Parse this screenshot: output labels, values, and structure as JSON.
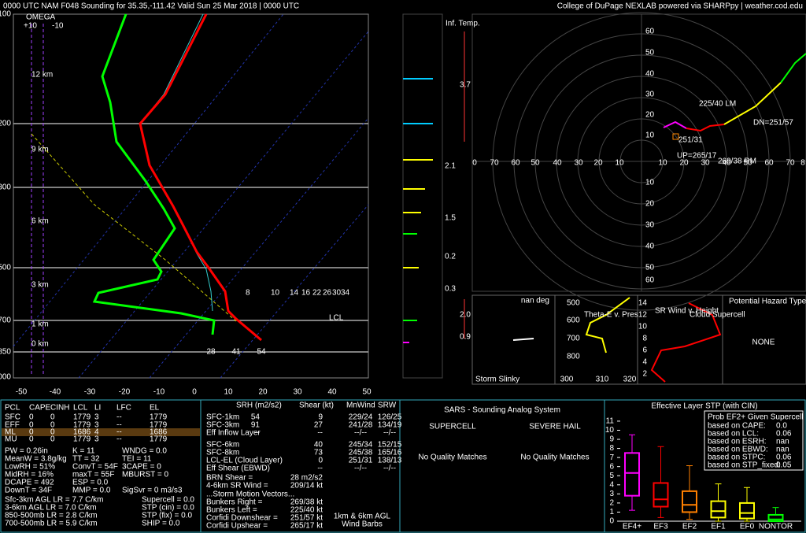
{
  "header": {
    "title": "0000 UTC NAM F048 Sounding for 35.35,-111.42 Valid  Sun 25 Mar 2018 | 0000 UTC",
    "credit": "College of DuPage NEXLAB powered via SHARPpy | weather.cod.edu"
  },
  "skewt": {
    "omega_title": "OMEGA",
    "omega_ticks": [
      "+10",
      "-10"
    ],
    "pressure_labels": [
      "100",
      "200",
      "300",
      "500",
      "700",
      "850",
      "1000"
    ],
    "temp_labels": [
      "-50",
      "-40",
      "-30",
      "-20",
      "-10",
      "0",
      "10",
      "20",
      "30",
      "40",
      "50"
    ],
    "height_labels": [
      "12 km",
      "9 km",
      "6 km",
      "3 km",
      "1 km",
      "0 km"
    ],
    "mixing_labels": [
      "8",
      "10",
      "14",
      "16",
      "22",
      "26",
      "30",
      "34"
    ],
    "lcl": "LCL",
    "surface_labels": [
      "28",
      "41",
      "54"
    ]
  },
  "inferred_temp": {
    "title": "Inf. Temp.",
    "labels": [
      "3.7",
      "2.1",
      "1.5",
      "0.2",
      "0.3",
      "2.0",
      "0.9"
    ]
  },
  "hodograph": {
    "x_labels": [
      "0",
      "70",
      "60",
      "50",
      "40",
      "30",
      "20",
      "10",
      "10",
      "20",
      "30",
      "40",
      "50",
      "60",
      "70",
      "8"
    ],
    "y_labels": [
      "60",
      "50",
      "40",
      "30",
      "20",
      "10",
      "10",
      "20",
      "30",
      "40",
      "50",
      "60"
    ],
    "annotations": [
      "225/40 LM",
      "DN=251/57",
      "251/31",
      "UP=265/17",
      "269/38 RM"
    ]
  },
  "slinky": {
    "angle": "nan deg",
    "title": "Storm Slinky"
  },
  "theta_e": {
    "title": "Theta-E v. Pres",
    "p_labels": [
      "500",
      "600",
      "700",
      "800"
    ],
    "t_labels": [
      "300",
      "310",
      "320"
    ]
  },
  "sr_wind": {
    "title": "SR Wind v. Height",
    "h_labels": [
      "14",
      "12",
      "10",
      "8",
      "6",
      "4",
      "2"
    ],
    "note": "Cloud Supercell"
  },
  "hazard": {
    "title": "Potential Hazard Type",
    "value": "NONE"
  },
  "parcels": {
    "headers": [
      "PCL",
      "CAPE",
      "CINH",
      "LCL",
      "LI",
      "LFC",
      "EL"
    ],
    "rows": [
      [
        "SFC",
        "0",
        "0",
        "1779",
        "3",
        "--",
        "1779"
      ],
      [
        "EFF",
        "0",
        "0",
        "1779",
        "3",
        "--",
        "1779"
      ],
      [
        "ML",
        "0",
        "0",
        "1686",
        "4",
        "--",
        "1686"
      ],
      [
        "MU",
        "0",
        "0",
        "1779",
        "3",
        "--",
        "1779"
      ]
    ]
  },
  "indices": {
    "col1": [
      "PW = 0.26in",
      "MeanW = 3.8g/kg",
      "LowRH = 51%",
      "MidRH = 16%",
      "DCAPE = 492",
      "DownT = 34F"
    ],
    "col2": [
      "K = 11",
      "TT = 32",
      "ConvT = 54F",
      "maxT = 55F",
      "ESP = 0.0",
      "MMP = 0.0"
    ],
    "col3": [
      "WNDG = 0.0",
      "TEI = 11",
      "3CAPE = 0",
      "MBURST = 0",
      "SigSvr = 0 m3/s3"
    ],
    "lapse": [
      "Sfc-3km AGL LR = 7.7 C/km",
      "3-6km AGL LR = 7.0 C/km",
      "850-500mb LR = 2.8 C/km",
      "700-500mb LR = 5.9 C/km"
    ],
    "composite": [
      "Supercell = 0.0",
      "STP (cin) = 0.0",
      "STP (fix) = 0.0",
      "SHIP = 0.0"
    ]
  },
  "kinematics": {
    "headers": [
      "SRH (m2/s2)",
      "Shear (kt)",
      "MnWind",
      "SRW"
    ],
    "rows": [
      {
        "label": "SFC-1km",
        "srh": "54",
        "shear": "9",
        "mnwind": "229/24",
        "srw": "126/25"
      },
      {
        "label": "SFC-3km",
        "srh": "91",
        "shear": "27",
        "mnwind": "241/28",
        "srw": "134/19"
      },
      {
        "label": "Eff Inflow Layer",
        "srh": "--",
        "shear": "--",
        "mnwind": "--/--",
        "srw": "--/--"
      },
      {
        "label": "SFC-6km",
        "shear": "40",
        "mnwind": "245/34",
        "srw": "152/15"
      },
      {
        "label": "SFC-8km",
        "shear": "73",
        "mnwind": "245/38",
        "srw": "165/16"
      },
      {
        "label": "LCL-EL (Cloud Layer)",
        "shear": "0",
        "mnwind": "251/31",
        "srw": "138/13"
      },
      {
        "label": "Eff Shear (EBWD)",
        "shear": "--",
        "mnwind": "--/--",
        "srw": "--/--"
      }
    ],
    "extra": [
      {
        "label": "BRN Shear =",
        "value": "28 m2/s2"
      },
      {
        "label": "4-6km SR Wind =",
        "value": "209/14 kt"
      }
    ],
    "motion_title": "...Storm Motion Vectors...",
    "motion": [
      {
        "label": "Bunkers Right =",
        "value": "269/38 kt"
      },
      {
        "label": "Bunkers Left =",
        "value": "225/40 kt"
      },
      {
        "label": "Corfidi Downshear =",
        "value": "251/57 kt"
      },
      {
        "label": "Corfidi Upshear =",
        "value": "265/17 kt"
      }
    ],
    "barb_note": [
      "1km & 6km AGL",
      "Wind Barbs"
    ]
  },
  "sars": {
    "title": "SARS - Sounding Analog System",
    "supercell": "SUPERCELL",
    "hail": "SEVERE HAIL",
    "supercell_result": "No Quality Matches",
    "hail_result": "No Quality Matches"
  },
  "stp": {
    "title": "Effective Layer STP (with CIN)",
    "yticks": [
      0,
      1,
      2,
      3,
      4,
      5,
      6,
      7,
      8,
      9,
      10,
      11
    ],
    "ylim": [
      0,
      11.6
    ],
    "boxes": [
      {
        "name": "EF4+",
        "color": "#ff00ff",
        "values": [
          1.2,
          2.8,
          5.3,
          7.5,
          9.5
        ]
      },
      {
        "name": "EF3",
        "color": "#ff0000",
        "values": [
          0.4,
          1.6,
          2.4,
          4.2,
          8.2
        ]
      },
      {
        "name": "EF2",
        "color": "#ff8000",
        "values": [
          0.2,
          1.0,
          1.8,
          3.3,
          6.1
        ]
      },
      {
        "name": "EF1",
        "color": "#ffff00",
        "values": [
          0,
          0.4,
          1.1,
          2.2,
          4.1
        ]
      },
      {
        "name": "EF0",
        "color": "#ffff00",
        "values": [
          0,
          0.3,
          0.9,
          2.0,
          3.7
        ]
      },
      {
        "name": "NONTOR",
        "color": "#00ff00",
        "values": [
          0,
          0,
          0.2,
          0.7,
          1.5
        ]
      }
    ],
    "prob_title": "Prob EF2+ Given Supercell",
    "prob": [
      {
        "label": "based on CAPE:",
        "value": "0.0"
      },
      {
        "label": "based on LCL:",
        "value": "0.06"
      },
      {
        "label": "based on ESRH:",
        "value": "nan"
      },
      {
        "label": "based on EBWD:",
        "value": "nan"
      },
      {
        "label": "based on STPC:",
        "value": "0.06"
      },
      {
        "label": "based on STP_fixed:",
        "value": "0.05"
      }
    ]
  }
}
